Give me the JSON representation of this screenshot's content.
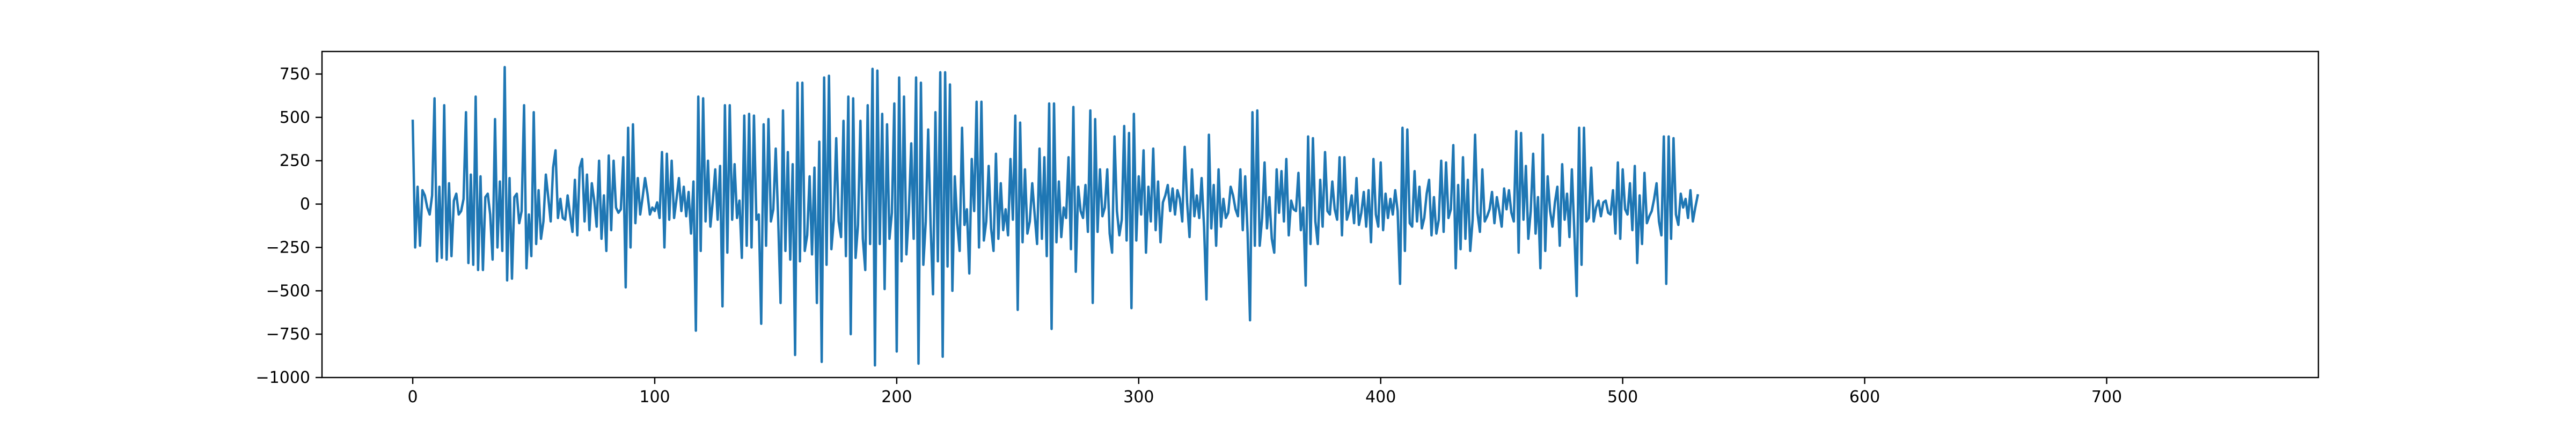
{
  "chart_data": {
    "type": "line",
    "title": "",
    "xlabel": "",
    "ylabel": "",
    "xlim": [
      -37.5,
      787.5
    ],
    "ylim": [
      -1000,
      880
    ],
    "x_ticks": [
      0,
      100,
      200,
      300,
      400,
      500,
      600,
      700
    ],
    "x_tick_labels": [
      "0",
      "100",
      "200",
      "300",
      "400",
      "500",
      "600",
      "700"
    ],
    "y_ticks": [
      -1000,
      -750,
      -500,
      -250,
      0,
      250,
      500,
      750
    ],
    "y_tick_labels": [
      "−1000",
      "−750",
      "−500",
      "−250",
      "0",
      "250",
      "500",
      "750"
    ],
    "grid": false,
    "legend": "none",
    "series": [
      {
        "color": "#1f77b4",
        "x_start": 0,
        "x_step": 1,
        "values": [
          480,
          -250,
          100,
          -240,
          80,
          50,
          -20,
          -60,
          50,
          610,
          -330,
          100,
          -310,
          570,
          -320,
          120,
          -300,
          20,
          60,
          -60,
          -40,
          30,
          530,
          -340,
          170,
          -350,
          620,
          -380,
          160,
          -380,
          40,
          60,
          -60,
          -320,
          490,
          -250,
          130,
          -270,
          790,
          -440,
          150,
          -430,
          40,
          60,
          -110,
          -40,
          570,
          -370,
          -60,
          -300,
          530,
          -230,
          80,
          -200,
          -100,
          170,
          40,
          -100,
          210,
          310,
          -80,
          30,
          -80,
          -90,
          50,
          -60,
          -160,
          140,
          -180,
          210,
          260,
          -100,
          170,
          -150,
          120,
          20,
          -130,
          250,
          -200,
          50,
          -270,
          280,
          -150,
          250,
          -20,
          -50,
          -30,
          270,
          -480,
          440,
          -250,
          460,
          -110,
          150,
          -60,
          40,
          150,
          60,
          -60,
          -20,
          -40,
          10,
          -80,
          300,
          -250,
          290,
          -90,
          250,
          -80,
          30,
          150,
          -40,
          100,
          -70,
          70,
          -170,
          130,
          -730,
          620,
          -270,
          610,
          -100,
          250,
          -130,
          20,
          200,
          -90,
          220,
          -590,
          570,
          -280,
          570,
          -90,
          230,
          -80,
          20,
          -310,
          510,
          -240,
          520,
          -250,
          510,
          -90,
          -60,
          -690,
          460,
          -240,
          490,
          -100,
          -30,
          320,
          -80,
          -570,
          540,
          -270,
          300,
          -320,
          230,
          -870,
          700,
          -330,
          700,
          -270,
          -180,
          160,
          -290,
          210,
          -570,
          360,
          -910,
          730,
          -350,
          740,
          -260,
          -90,
          380,
          -100,
          -190,
          480,
          -300,
          620,
          -750,
          610,
          -310,
          -120,
          480,
          -200,
          -380,
          570,
          -230,
          780,
          -930,
          770,
          -230,
          520,
          -490,
          460,
          -200,
          -50,
          580,
          -850,
          730,
          -330,
          620,
          -290,
          -50,
          350,
          -200,
          730,
          -920,
          700,
          -350,
          -100,
          430,
          -120,
          -520,
          530,
          -330,
          760,
          -880,
          760,
          -360,
          690,
          -500,
          160,
          -110,
          -270,
          440,
          -120,
          -30,
          -400,
          260,
          -40,
          590,
          -250,
          590,
          -210,
          -100,
          220,
          -140,
          -270,
          290,
          -200,
          120,
          -150,
          -30,
          -180,
          260,
          -90,
          510,
          -610,
          470,
          -220,
          200,
          -170,
          -100,
          120,
          -60,
          -230,
          320,
          -200,
          270,
          -300,
          580,
          -720,
          580,
          -220,
          130,
          -190,
          -20,
          -80,
          270,
          -260,
          560,
          -390,
          100,
          -40,
          -80,
          110,
          -160,
          540,
          -570,
          490,
          -160,
          200,
          -70,
          -20,
          200,
          -170,
          -280,
          390,
          -40,
          -180,
          -90,
          450,
          -210,
          410,
          -600,
          520,
          -210,
          160,
          -60,
          310,
          -280,
          100,
          -100,
          320,
          -150,
          130,
          -220,
          10,
          50,
          110,
          -40,
          90,
          -60,
          80,
          30,
          -100,
          330,
          10,
          -190,
          200,
          -70,
          50,
          -80,
          150,
          -130,
          -550,
          400,
          -140,
          110,
          -240,
          200,
          -130,
          30,
          -80,
          -50,
          100,
          50,
          -30,
          -70,
          200,
          -150,
          160,
          -170,
          -670,
          530,
          -240,
          540,
          -240,
          -80,
          240,
          -140,
          40,
          -200,
          -280,
          200,
          -50,
          190,
          -100,
          260,
          -180,
          20,
          -30,
          -40,
          180,
          -150,
          -20,
          -470,
          390,
          -230,
          380,
          -100,
          -230,
          140,
          -130,
          300,
          -40,
          -60,
          130,
          -30,
          -90,
          270,
          -180,
          270,
          -90,
          -40,
          50,
          -110,
          150,
          -120,
          -50,
          70,
          -130,
          80,
          -220,
          260,
          -60,
          -130,
          240,
          -150,
          60,
          -80,
          30,
          -60,
          80,
          -40,
          -460,
          440,
          -270,
          430,
          -110,
          -130,
          190,
          -100,
          100,
          -140,
          -80,
          60,
          140,
          -180,
          40,
          -170,
          -90,
          250,
          -160,
          240,
          -80,
          -30,
          340,
          -370,
          110,
          -260,
          270,
          -200,
          140,
          -270,
          -90,
          400,
          -50,
          -160,
          200,
          -100,
          -70,
          -30,
          70,
          -110,
          40,
          -40,
          -130,
          90,
          -30,
          80,
          -50,
          -100,
          420,
          -280,
          410,
          -90,
          220,
          -200,
          -40,
          290,
          -170,
          40,
          -370,
          400,
          -270,
          160,
          -40,
          -130,
          10,
          100,
          -240,
          230,
          -90,
          60,
          -190,
          200,
          -150,
          -530,
          440,
          -350,
          440,
          -100,
          -80,
          210,
          -100,
          -20,
          20,
          -70,
          10,
          20,
          -50,
          -60,
          80,
          -170,
          240,
          -200,
          200,
          -30,
          -60,
          120,
          -150,
          220,
          -340,
          50,
          -230,
          180,
          -110,
          -70,
          -40,
          30,
          120,
          -100,
          -180,
          390,
          -460,
          390,
          -200,
          380,
          -60,
          -120,
          60,
          -20,
          30,
          -80,
          80,
          -100,
          -20,
          50
        ]
      }
    ]
  }
}
